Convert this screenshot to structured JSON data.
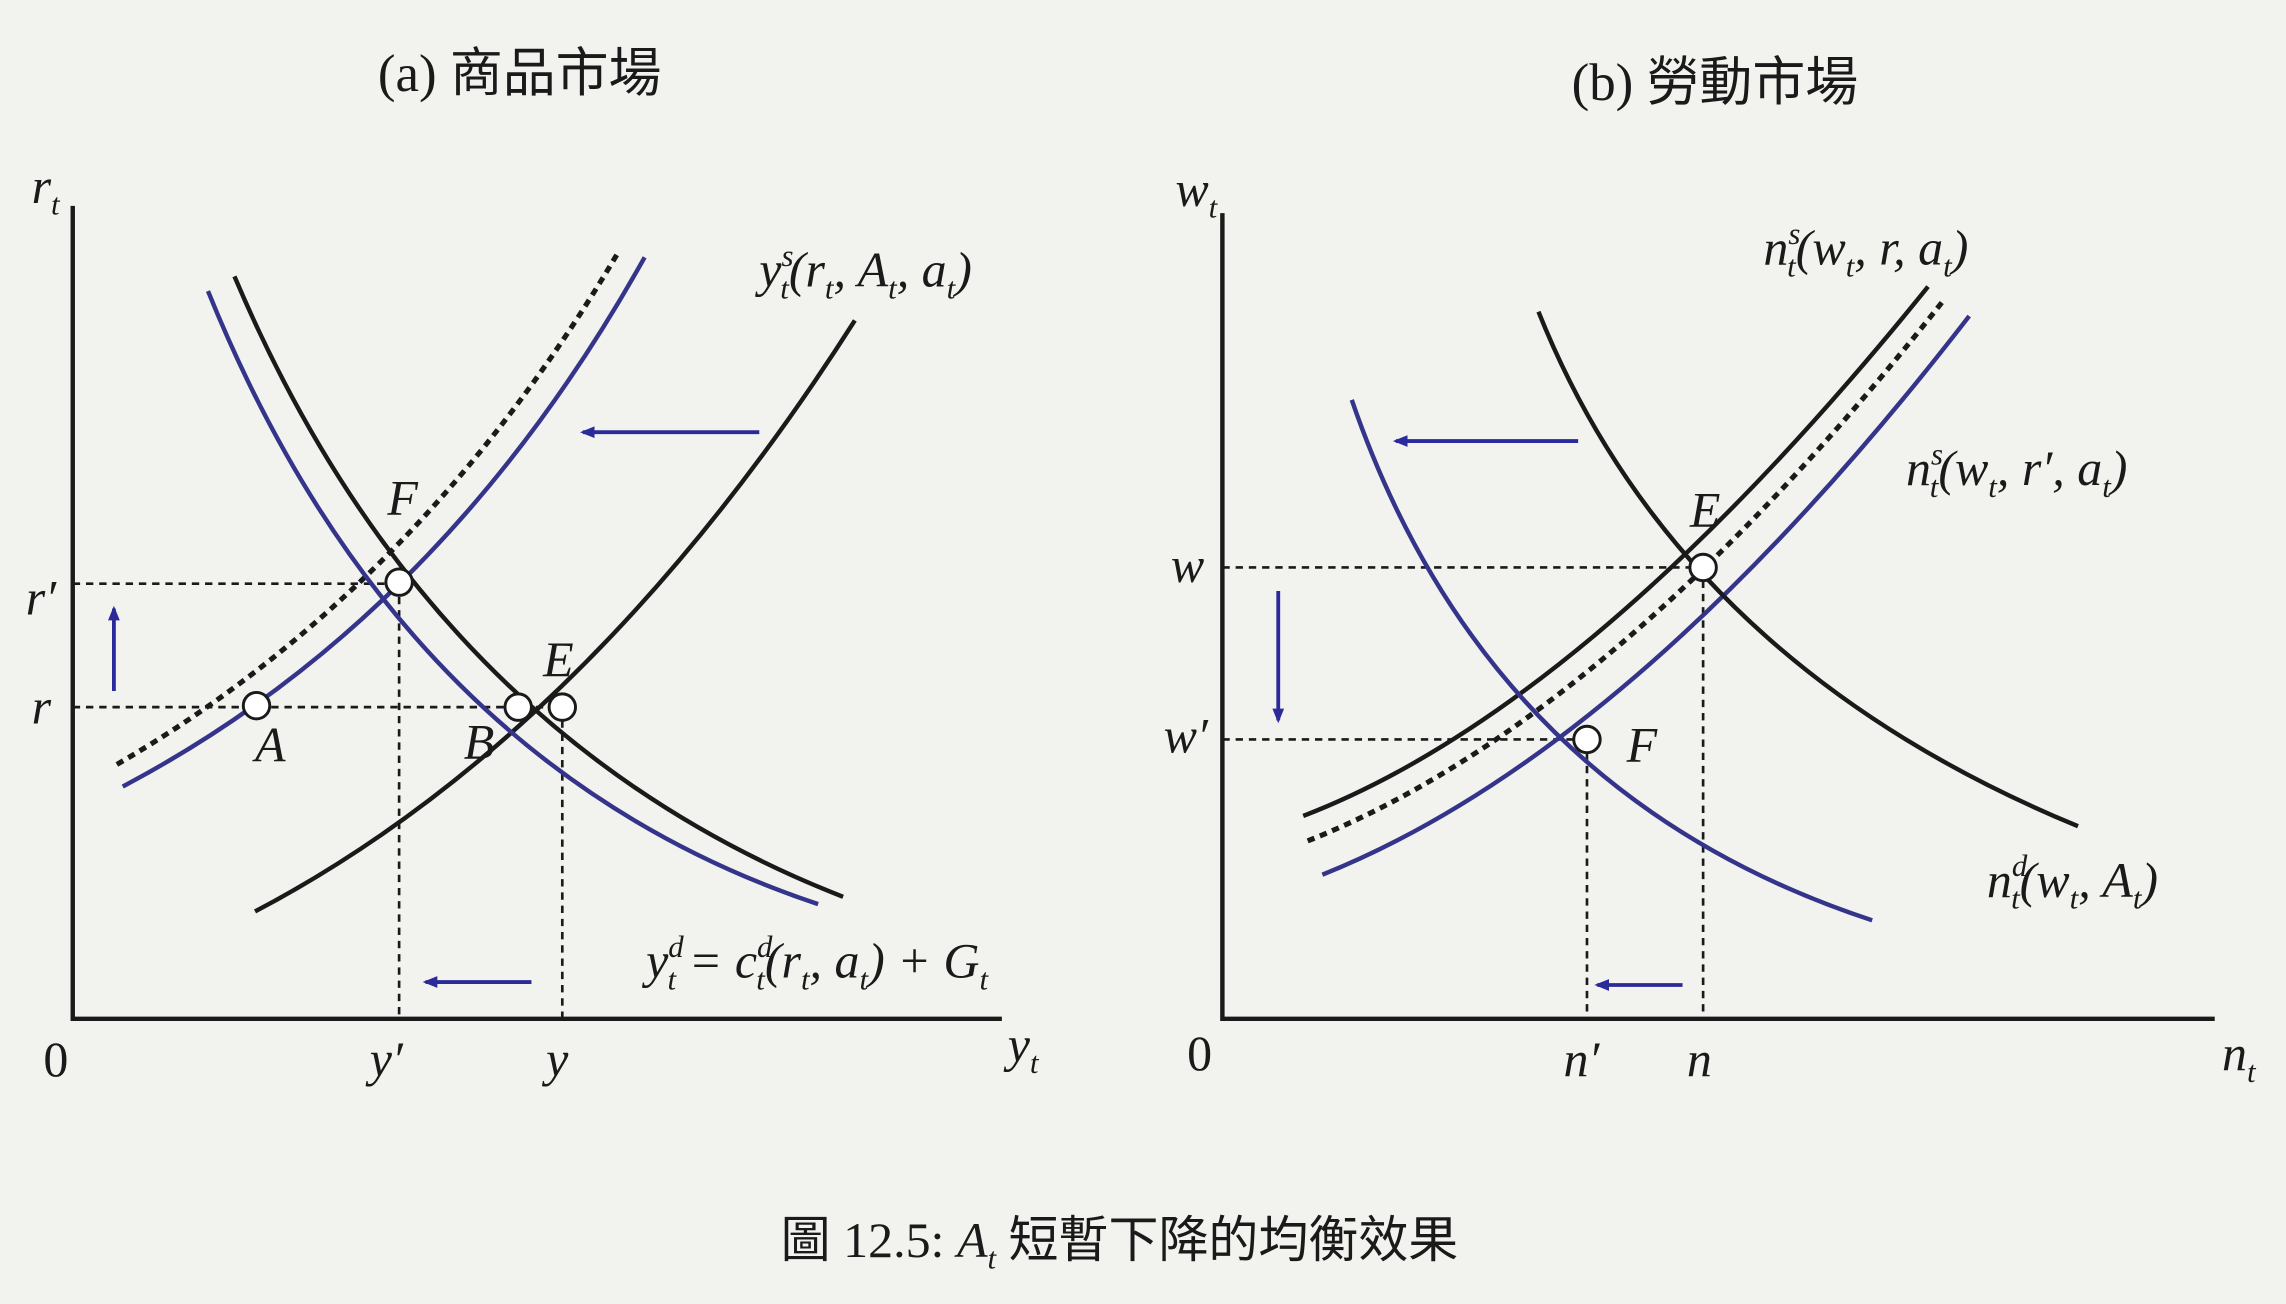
{
  "panels": [
    {
      "title": "(a) 商品市場",
      "y_axis": [
        "r",
        "t"
      ],
      "x_axis": [
        "y",
        "t"
      ],
      "origin": "0",
      "y_ticks": [
        "r′",
        "r"
      ],
      "x_ticks": [
        "y′",
        "y"
      ],
      "points": [
        "F",
        "A",
        "B",
        "E"
      ],
      "curve_labels": [
        [
          "y",
          "s",
          "t",
          "(r",
          "t",
          ", A",
          "t",
          ", a",
          "t",
          ")"
        ],
        [
          "y",
          "d",
          "t",
          " = c",
          "d",
          "t",
          "(r",
          "t",
          ", a",
          "t",
          ") + G",
          "t"
        ]
      ]
    },
    {
      "title": "(b) 勞動市場",
      "y_axis": [
        "w",
        "t"
      ],
      "x_axis": [
        "n",
        "t"
      ],
      "origin": "0",
      "y_ticks": [
        "w",
        "w′"
      ],
      "x_ticks": [
        "n′",
        "n"
      ],
      "points": [
        "E",
        "F"
      ],
      "curve_labels": [
        [
          "n",
          "s",
          "t",
          "(w",
          "t",
          ", r, a",
          "t",
          ")"
        ],
        [
          "n",
          "s",
          "t",
          "(w",
          "t",
          ", r′, a",
          "t",
          ")"
        ],
        [
          "n",
          "d",
          "t",
          "(w",
          "t",
          ", A",
          "t",
          ")"
        ]
      ]
    }
  ],
  "caption": [
    "圖 12.5: ",
    "A",
    "t",
    " 短暫下降的均衡效果"
  ]
}
